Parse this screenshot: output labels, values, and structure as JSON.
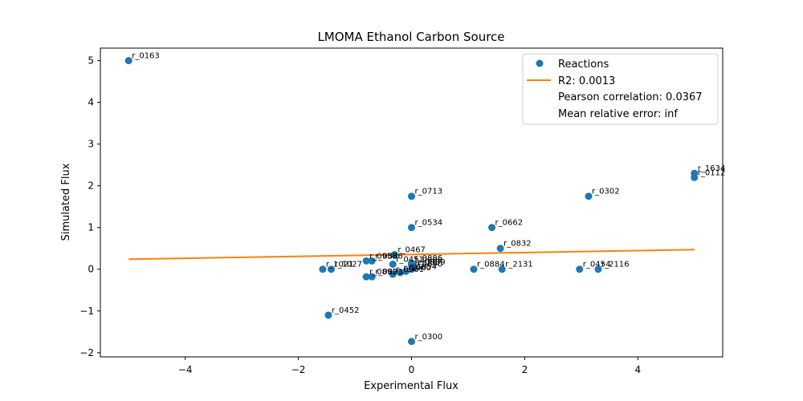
{
  "chart_data": {
    "type": "scatter",
    "title": "LMOMA Ethanol Carbon Source",
    "xlabel": "Experimental Flux",
    "ylabel": "Simulated Flux",
    "xlim": [
      -5.5,
      5.5
    ],
    "ylim": [
      -2.1,
      5.3
    ],
    "xticks": [
      -4,
      -2,
      0,
      2,
      4
    ],
    "yticks": [
      -2,
      -1,
      0,
      1,
      2,
      3,
      4,
      5
    ],
    "grid": false,
    "legend_position": "top-right",
    "colors": {
      "points": "#1f77b4",
      "fit_line": "#ff7f0e"
    },
    "legend": {
      "points": "Reactions",
      "line": "R2: 0.0013",
      "pearson": "Pearson correlation: 0.0367",
      "mre": "Mean relative error: inf"
    },
    "points": [
      {
        "x": -5.0,
        "y": 5.0,
        "label": "r_0163"
      },
      {
        "x": 5.0,
        "y": 2.3,
        "label": "r_1634"
      },
      {
        "x": 5.0,
        "y": 2.2,
        "label": "r_0112"
      },
      {
        "x": 0.0,
        "y": 1.75,
        "label": "r_0713"
      },
      {
        "x": 3.13,
        "y": 1.75,
        "label": "r_0302"
      },
      {
        "x": 0.0,
        "y": 1.0,
        "label": "r_0534"
      },
      {
        "x": 1.42,
        "y": 1.0,
        "label": "r_0662"
      },
      {
        "x": 1.57,
        "y": 0.5,
        "label": "r_0832"
      },
      {
        "x": -0.3,
        "y": 0.35,
        "label": "r_0467"
      },
      {
        "x": -0.8,
        "y": 0.2,
        "label": "r_0958"
      },
      {
        "x": -0.7,
        "y": 0.2,
        "label": "r_0886"
      },
      {
        "x": -0.33,
        "y": 0.12,
        "label": "r_0451"
      },
      {
        "x": 0.0,
        "y": 0.15,
        "label": "r_0886"
      },
      {
        "x": 0.0,
        "y": 0.1,
        "label": "r_0888"
      },
      {
        "x": 0.05,
        "y": 0.05,
        "label": "r_0889"
      },
      {
        "x": 0.0,
        "y": 0.0,
        "label": "r_0890"
      },
      {
        "x": -0.1,
        "y": -0.05,
        "label": "r_1054"
      },
      {
        "x": -1.57,
        "y": 0.0,
        "label": "r_1021"
      },
      {
        "x": -1.42,
        "y": 0.0,
        "label": "r_1027"
      },
      {
        "x": 1.1,
        "y": 0.0,
        "label": "r_0884"
      },
      {
        "x": 1.6,
        "y": 0.0,
        "label": "r_2131"
      },
      {
        "x": 2.97,
        "y": 0.0,
        "label": "r_0454"
      },
      {
        "x": 3.3,
        "y": 0.0,
        "label": "r_2116"
      },
      {
        "x": -0.8,
        "y": -0.18,
        "label": "r_0892"
      },
      {
        "x": -0.7,
        "y": -0.18,
        "label": "r_0893"
      },
      {
        "x": -0.33,
        "y": -0.12,
        "label": "r_0961"
      },
      {
        "x": -0.2,
        "y": -0.08,
        "label": "r_1060"
      },
      {
        "x": -1.47,
        "y": -1.1,
        "label": "r_0452"
      },
      {
        "x": 0.0,
        "y": -1.73,
        "label": "r_0300"
      }
    ],
    "fit_line": {
      "x": [
        -5.0,
        5.0
      ],
      "y": [
        0.24,
        0.47
      ]
    }
  }
}
